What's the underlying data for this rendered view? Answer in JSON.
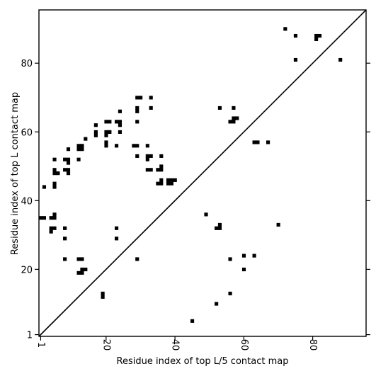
{
  "chart_data": {
    "type": "scatter",
    "title": "",
    "xlabel": "Residue index of top L/5 contact map",
    "ylabel": "Residue index of top L contact map",
    "xlim": [
      0.5,
      95.5
    ],
    "ylim": [
      0.5,
      95.5
    ],
    "x_ticks": [
      1,
      20,
      40,
      60,
      80
    ],
    "y_ticks": [
      1,
      20,
      40,
      60,
      80
    ],
    "x_tick_labels": [
      "1",
      "20",
      "40",
      "60",
      "80"
    ],
    "y_tick_labels": [
      "1",
      "20",
      "40",
      "60",
      "80"
    ],
    "grid": false,
    "diagonal_line": true,
    "marker": "square",
    "marker_color": "#000000",
    "points_above_diagonal": [
      [
        2,
        44
      ],
      [
        5,
        52
      ],
      [
        5,
        49
      ],
      [
        5,
        48
      ],
      [
        6,
        48
      ],
      [
        5,
        45
      ],
      [
        5,
        44
      ],
      [
        9,
        55
      ],
      [
        8,
        52
      ],
      [
        9,
        52
      ],
      [
        9,
        51
      ],
      [
        8,
        49
      ],
      [
        9,
        49
      ],
      [
        9,
        48
      ],
      [
        12,
        56
      ],
      [
        13,
        56
      ],
      [
        12,
        55
      ],
      [
        13,
        55
      ],
      [
        14,
        58
      ],
      [
        12,
        52
      ],
      [
        17,
        62
      ],
      [
        17,
        60
      ],
      [
        17,
        59
      ],
      [
        20,
        63
      ],
      [
        21,
        63
      ],
      [
        20,
        60
      ],
      [
        21,
        60
      ],
      [
        20,
        59
      ],
      [
        20,
        57
      ],
      [
        20,
        56
      ],
      [
        23,
        63
      ],
      [
        24,
        63
      ],
      [
        24,
        62
      ],
      [
        24,
        66
      ],
      [
        24,
        60
      ],
      [
        23,
        56
      ],
      [
        29,
        70
      ],
      [
        30,
        70
      ],
      [
        29,
        67
      ],
      [
        29,
        66
      ],
      [
        29,
        63
      ],
      [
        28,
        56
      ],
      [
        29,
        56
      ],
      [
        29,
        53
      ],
      [
        32,
        56
      ],
      [
        32,
        53
      ],
      [
        33,
        53
      ],
      [
        32,
        52
      ],
      [
        33,
        70
      ],
      [
        33,
        67
      ],
      [
        32,
        49
      ],
      [
        33,
        49
      ],
      [
        35,
        49
      ],
      [
        36,
        49
      ],
      [
        36,
        50
      ],
      [
        36,
        53
      ],
      [
        35,
        45
      ],
      [
        36,
        45
      ],
      [
        36,
        46
      ],
      [
        38,
        46
      ],
      [
        39,
        46
      ],
      [
        40,
        46
      ],
      [
        38,
        45
      ],
      [
        39,
        45
      ],
      [
        72,
        90
      ],
      [
        75,
        88
      ],
      [
        81,
        88
      ],
      [
        82,
        88
      ],
      [
        81,
        87
      ],
      [
        75,
        81
      ],
      [
        88,
        81
      ]
    ],
    "points_below_diagonal": [
      [
        1,
        35
      ],
      [
        2,
        35
      ],
      [
        4,
        35
      ],
      [
        5,
        35
      ],
      [
        5,
        36
      ],
      [
        4,
        32
      ],
      [
        5,
        32
      ],
      [
        4,
        31
      ],
      [
        8,
        32
      ],
      [
        8,
        29
      ],
      [
        8,
        23
      ],
      [
        12,
        23
      ],
      [
        13,
        23
      ],
      [
        12,
        19
      ],
      [
        13,
        19
      ],
      [
        13,
        20
      ],
      [
        14,
        20
      ],
      [
        19,
        13
      ],
      [
        19,
        12
      ],
      [
        23,
        32
      ],
      [
        23,
        29
      ],
      [
        29,
        23
      ],
      [
        45,
        5
      ],
      [
        49,
        36
      ],
      [
        52,
        32
      ],
      [
        53,
        32
      ],
      [
        53,
        33
      ],
      [
        53,
        67
      ],
      [
        52,
        10
      ],
      [
        56,
        13
      ],
      [
        56,
        23
      ],
      [
        56,
        63
      ],
      [
        57,
        63
      ],
      [
        57,
        64
      ],
      [
        58,
        64
      ],
      [
        57,
        67
      ],
      [
        60,
        24
      ],
      [
        60,
        20
      ],
      [
        63,
        24
      ],
      [
        63,
        57
      ],
      [
        64,
        57
      ],
      [
        67,
        57
      ],
      [
        70,
        33
      ]
    ]
  }
}
